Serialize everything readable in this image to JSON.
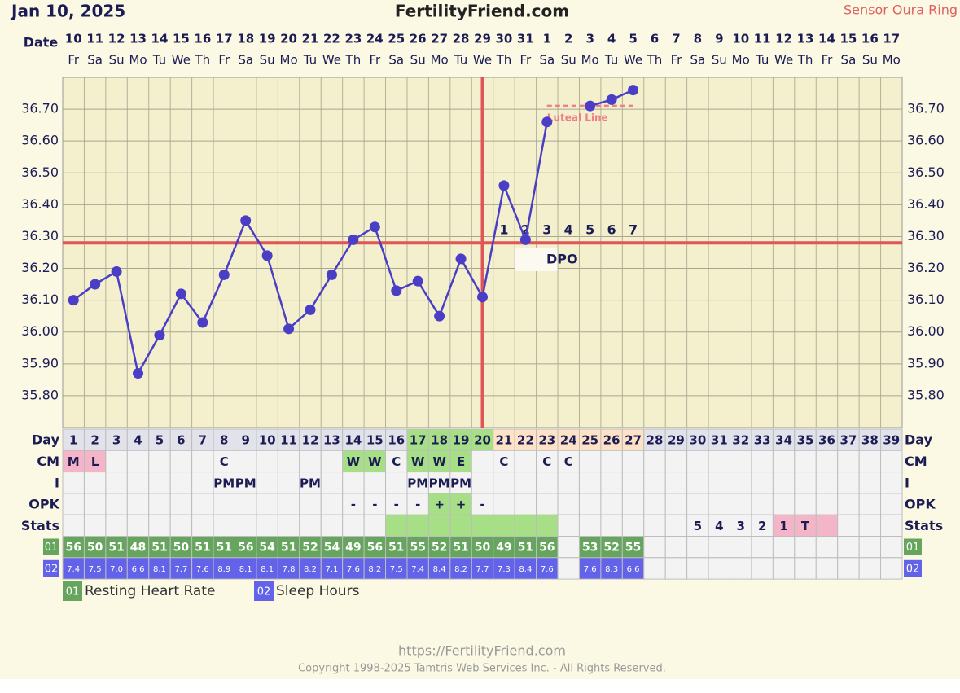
{
  "header": {
    "date": "Jan 10, 2025",
    "site": "FertilityFriend.com",
    "sensor": "Sensor Oura Ring"
  },
  "chart_data": {
    "type": "line",
    "x_label": "Date",
    "categories": [
      10,
      11,
      12,
      13,
      14,
      15,
      16,
      17,
      18,
      19,
      20,
      21,
      22,
      23,
      24,
      25,
      26,
      27,
      28,
      29,
      30,
      31,
      1,
      2,
      3,
      4,
      5,
      6,
      7,
      8,
      9,
      10,
      11,
      12,
      13,
      14,
      15,
      16,
      17
    ],
    "weekdays": [
      "Fr",
      "Sa",
      "Su",
      "Mo",
      "Tu",
      "We",
      "Th",
      "Fr",
      "Sa",
      "Su",
      "Mo",
      "Tu",
      "We",
      "Th",
      "Fr",
      "Sa",
      "Su",
      "Mo",
      "Tu",
      "We",
      "Th",
      "Fr",
      "Sa",
      "Su",
      "Mo",
      "Tu",
      "We",
      "Th",
      "Fr",
      "Sa",
      "Su",
      "Mo",
      "Tu",
      "We",
      "Th",
      "Fr",
      "Sa",
      "Su",
      "Mo"
    ],
    "values": [
      36.1,
      36.15,
      36.19,
      35.87,
      35.99,
      36.12,
      36.03,
      36.18,
      36.35,
      36.24,
      36.01,
      36.07,
      36.18,
      36.29,
      36.33,
      36.13,
      36.16,
      36.05,
      36.23,
      36.11,
      36.46,
      36.29,
      36.66,
      null,
      36.71,
      36.73,
      36.76,
      null,
      null,
      null,
      null,
      null,
      null,
      null,
      null,
      null,
      null,
      null,
      null
    ],
    "color": "#4a3ec6",
    "ylim": [
      35.7,
      36.8
    ],
    "yticks": [
      {
        "value": 35.8,
        "label": "35.80"
      },
      {
        "value": 35.9,
        "label": "35.90"
      },
      {
        "value": 36.0,
        "label": "36.00"
      },
      {
        "value": 36.1,
        "label": "36.10"
      },
      {
        "value": 36.2,
        "label": "36.20"
      },
      {
        "value": 36.3,
        "label": "36.30"
      },
      {
        "value": 36.4,
        "label": "36.40"
      },
      {
        "value": 36.5,
        "label": "36.50"
      },
      {
        "value": 36.6,
        "label": "36.60"
      },
      {
        "value": 36.7,
        "label": "36.70"
      }
    ],
    "grid": true,
    "coverline": 36.28,
    "coverline_color": "#e05555",
    "ovulation_day": 20,
    "luteal_line": {
      "label": "Luteal Line",
      "value": 36.71,
      "from_day": 23,
      "to_day": 27,
      "color": "#f07e86"
    },
    "dpo": {
      "label": "DPO",
      "start_day": 21,
      "values": [
        1,
        2,
        3,
        4,
        5,
        6,
        7
      ]
    }
  },
  "table": {
    "rows": [
      {
        "label": "Day",
        "cells": [
          1,
          2,
          3,
          4,
          5,
          6,
          7,
          8,
          9,
          10,
          11,
          12,
          13,
          14,
          15,
          16,
          17,
          18,
          19,
          20,
          21,
          22,
          23,
          24,
          25,
          26,
          27,
          28,
          29,
          30,
          31,
          32,
          33,
          34,
          35,
          36,
          37,
          38,
          39
        ],
        "fills": [
          "#e2e2ea",
          "#e2e2ea",
          "#e2e2ea",
          "#e2e2ea",
          "#e2e2ea",
          "#e2e2ea",
          "#e2e2ea",
          "#e2e2ea",
          "#e2e2ea",
          "#e2e2ea",
          "#e2e2ea",
          "#e2e2ea",
          "#e2e2ea",
          "#e2e2ea",
          "#e2e2ea",
          "#e2e2ea",
          "#a6df86",
          "#a6df86",
          "#a6df86",
          "#a6df86",
          "#fde2c6",
          "#fde2c6",
          "#fde2c6",
          "#fde2c6",
          "#fde2c6",
          "#fde2c6",
          "#fde2c6",
          "#e2e2ea",
          "#e2e2ea",
          "#e2e2ea",
          "#e2e2ea",
          "#e2e2ea",
          "#e2e2ea",
          "#e2e2ea",
          "#e2e2ea",
          "#e2e2ea",
          "#e2e2ea",
          "#e2e2ea",
          "#e2e2ea"
        ]
      },
      {
        "label": "CM",
        "cells": [
          "M",
          "L",
          null,
          null,
          null,
          null,
          null,
          "C",
          null,
          null,
          null,
          null,
          null,
          "W",
          "W",
          "C",
          "W",
          "W",
          "E",
          null,
          "C",
          null,
          "C",
          "C",
          null,
          null,
          null,
          null,
          null,
          null,
          null,
          null,
          null,
          null,
          null,
          null,
          null,
          null,
          null
        ],
        "fills": [
          "#f5b5c9",
          "#f5b5c9",
          null,
          null,
          null,
          null,
          null,
          null,
          null,
          null,
          null,
          null,
          null,
          "#a6df86",
          "#a6df86",
          null,
          "#a6df86",
          "#a6df86",
          "#a6df86",
          null,
          null,
          null,
          null,
          null,
          null,
          null,
          null,
          null,
          null,
          null,
          null,
          null,
          null,
          null,
          null,
          null,
          null,
          null,
          null
        ]
      },
      {
        "label": "I",
        "cells": [
          null,
          null,
          null,
          null,
          null,
          null,
          null,
          "PM",
          "PM",
          null,
          null,
          "PM",
          null,
          null,
          null,
          null,
          "PM",
          "PM",
          "PM",
          null,
          null,
          null,
          null,
          null,
          null,
          null,
          null,
          null,
          null,
          null,
          null,
          null,
          null,
          null,
          null,
          null,
          null,
          null,
          null
        ]
      },
      {
        "label": "OPK",
        "cells": [
          null,
          null,
          null,
          null,
          null,
          null,
          null,
          null,
          null,
          null,
          null,
          null,
          null,
          "-",
          "-",
          "-",
          "-",
          "+",
          "+",
          "-",
          null,
          null,
          null,
          null,
          null,
          null,
          null,
          null,
          null,
          null,
          null,
          null,
          null,
          null,
          null,
          null,
          null,
          null,
          null
        ],
        "fills": [
          null,
          null,
          null,
          null,
          null,
          null,
          null,
          null,
          null,
          null,
          null,
          null,
          null,
          null,
          null,
          null,
          null,
          "#a6df86",
          "#a6df86",
          null,
          null,
          null,
          null,
          null,
          null,
          null,
          null,
          null,
          null,
          null,
          null,
          null,
          null,
          null,
          null,
          null,
          null,
          null,
          null
        ]
      },
      {
        "label": "Stats",
        "cells": [
          null,
          null,
          null,
          null,
          null,
          null,
          null,
          null,
          null,
          null,
          null,
          null,
          null,
          null,
          null,
          null,
          null,
          null,
          null,
          null,
          null,
          null,
          null,
          null,
          null,
          null,
          null,
          null,
          null,
          "5",
          "4",
          "3",
          "2",
          "1",
          "T",
          null,
          null,
          null,
          null
        ],
        "fills": [
          null,
          null,
          null,
          null,
          null,
          null,
          null,
          null,
          null,
          null,
          null,
          null,
          null,
          null,
          null,
          "#a6df86",
          "#a6df86",
          "#a6df86",
          "#a6df86",
          "#a6df86",
          "#a6df86",
          "#a6df86",
          "#a6df86",
          null,
          null,
          null,
          null,
          null,
          null,
          null,
          null,
          null,
          null,
          "#f5b5c9",
          "#f5b5c9",
          "#f5b5c9",
          null,
          null,
          null
        ]
      },
      {
        "label": "01",
        "name": "Resting Heart Rate",
        "fill": "#66a55e",
        "cells": [
          56,
          50,
          51,
          48,
          51,
          50,
          51,
          51,
          56,
          54,
          51,
          52,
          54,
          49,
          56,
          51,
          55,
          52,
          51,
          50,
          49,
          51,
          56,
          null,
          53,
          52,
          55,
          null,
          null,
          null,
          null,
          null,
          null,
          null,
          null,
          null,
          null,
          null,
          null
        ]
      },
      {
        "label": "02",
        "name": "Sleep Hours",
        "fill": "#6363ea",
        "cells": [
          "7.4",
          "7.5",
          "7.0",
          "6.6",
          "8.1",
          "7.7",
          "7.6",
          "8.9",
          "8.1",
          "8.1",
          "7.8",
          "8.2",
          "7.1",
          "7.6",
          "8.2",
          "7.5",
          "7.4",
          "8.4",
          "8.2",
          "7.7",
          "7.3",
          "8.4",
          "7.6",
          null,
          "7.6",
          "8.3",
          "6.6",
          null,
          null,
          null,
          null,
          null,
          null,
          null,
          null,
          null,
          null,
          null,
          null
        ]
      }
    ]
  },
  "footer": {
    "url": "https://FertilityFriend.com",
    "copyright": "Copyright 1998-2025 Tamtris Web Services Inc. - All Rights Reserved."
  }
}
